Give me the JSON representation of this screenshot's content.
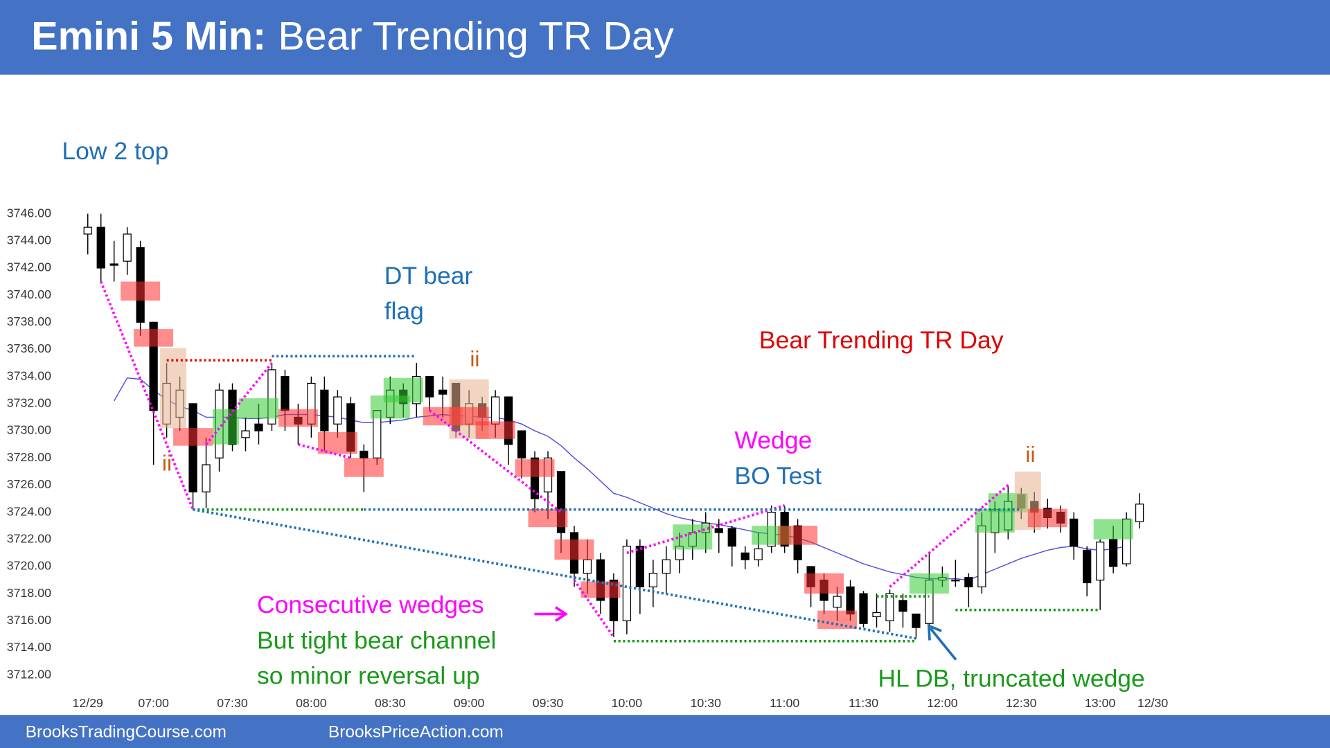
{
  "header": {
    "title_bold": "Emini 5 Min:",
    "title": "Bear Trending TR Day"
  },
  "footer": {
    "left": "BrooksTradingCourse.com",
    "right": "BrooksPriceAction.com"
  },
  "chart_data": {
    "type": "candlestick",
    "categories": [
      "12/29",
      null,
      null,
      null,
      null,
      "07:00",
      null,
      null,
      null,
      null,
      null,
      "07:30",
      null,
      null,
      null,
      null,
      null,
      "08:00",
      null,
      null,
      null,
      null,
      null,
      "08:30",
      null,
      null,
      null,
      null,
      null,
      "09:00",
      null,
      null,
      null,
      null,
      null,
      "09:30",
      null,
      null,
      null,
      null,
      null,
      "10:00",
      null,
      null,
      null,
      null,
      null,
      "10:30",
      null,
      null,
      null,
      null,
      null,
      "11:00",
      null,
      null,
      null,
      null,
      null,
      "11:30",
      null,
      null,
      null,
      null,
      null,
      "12:00",
      null,
      null,
      null,
      null,
      null,
      "12:30",
      null,
      null,
      null,
      null,
      null,
      "13:00",
      null,
      null,
      null,
      "12/30"
    ],
    "open": [
      3744.5,
      3745,
      3742.3,
      3742.5,
      3743.5,
      3738,
      3730.5,
      3731,
      3732,
      3725.5,
      3728,
      3733,
      3729.5,
      3730.5,
      3730.5,
      3734,
      3731,
      3730.5,
      3733,
      3730.5,
      3732,
      3728.5,
      3728,
      3731,
      3733,
      3732,
      3734,
      3733,
      3733.5,
      3730.5,
      3732,
      3730.5,
      3732.5,
      3730,
      3728,
      3725.5,
      3727,
      3722.5,
      3719.5,
      3720.5,
      3719,
      3716,
      3721.5,
      3718.5,
      3719.5,
      3720.5,
      3721.5,
      3722.5,
      3722.8,
      3722.8,
      3721,
      3720.5,
      3721.5,
      3724,
      3723,
      3720,
      3719,
      3717,
      3718.5,
      3718,
      3716.3,
      3716,
      3717.5,
      3716.5,
      3715.8,
      3719,
      3719,
      3719.2,
      3718.5,
      3722.5,
      3722.7,
      3725.3,
      3724.8,
      3724.3,
      3724,
      3723.5,
      3721.2,
      3719,
      3722,
      3720.2,
      3723.3,
      null
    ],
    "high": [
      3746,
      3746,
      3744,
      3745,
      3744,
      3738,
      3735,
      3734,
      3732,
      3729.5,
      3733.5,
      3733.5,
      3731,
      3732,
      3735,
      3734.5,
      3732,
      3734,
      3734,
      3733,
      3732.5,
      3729,
      3731.5,
      3734,
      3733.5,
      3735,
      3734,
      3734,
      3733.5,
      3733,
      3732.5,
      3733,
      3732.5,
      3730,
      3728.5,
      3728.5,
      3727,
      3723,
      3722,
      3721,
      3719.5,
      3722,
      3722,
      3720.5,
      3721.5,
      3722.5,
      3723.5,
      3724,
      3723.5,
      3723,
      3721.5,
      3722.5,
      3724.5,
      3724.5,
      3723.5,
      3720,
      3719.5,
      3718.5,
      3719,
      3718.2,
      3718,
      3718.3,
      3718,
      3716.5,
      3721,
      3720,
      3720.5,
      3719.5,
      3724,
      3724.8,
      3726,
      3725.8,
      3725.5,
      3725,
      3724.5,
      3724,
      3721.5,
      3722,
      3723,
      3724,
      3725.4,
      null
    ],
    "low": [
      3743,
      3741,
      3741,
      3741.5,
      3737,
      3727.5,
      3729.5,
      3730,
      3724.2,
      3724.3,
      3727,
      3728.5,
      3728.5,
      3729,
      3730,
      3730,
      3729,
      3729.5,
      3728.5,
      3729.5,
      3728,
      3725.5,
      3727.5,
      3730.5,
      3731,
      3731,
      3731.5,
      3731,
      3729.5,
      3729.5,
      3730,
      3729.5,
      3727.5,
      3726.5,
      3724,
      3723.5,
      3721,
      3718.5,
      3718,
      3716.5,
      3714.8,
      3715,
      3716.5,
      3717,
      3718,
      3719.5,
      3720.5,
      3721,
      3721,
      3720,
      3719.8,
      3720,
      3721,
      3721,
      3719.5,
      3717,
      3716.5,
      3716,
      3716,
      3715.5,
      3715.5,
      3715.2,
      3715.5,
      3714.7,
      3715.3,
      3718.5,
      3718.5,
      3717,
      3718,
      3721,
      3722,
      3723.5,
      3722.5,
      3722.8,
      3722.5,
      3720.5,
      3717.8,
      3716.8,
      3719.5,
      3720,
      3722.8,
      null
    ],
    "close": [
      3745,
      3742,
      3742.2,
      3744.5,
      3738,
      3731.5,
      3733.5,
      3733,
      3725.5,
      3727.5,
      3733,
      3729,
      3730,
      3730,
      3734.5,
      3731.5,
      3730.5,
      3733.5,
      3730,
      3732.5,
      3728.5,
      3728,
      3731.5,
      3733,
      3732,
      3734,
      3732.5,
      3732.7,
      3730,
      3732,
      3731,
      3732.5,
      3729,
      3728,
      3725,
      3728,
      3722.5,
      3719.5,
      3720.5,
      3717.5,
      3716,
      3721.5,
      3718.5,
      3719.5,
      3720.5,
      3721.5,
      3722.5,
      3723.2,
      3722.5,
      3721.5,
      3720.5,
      3721.3,
      3724,
      3721.5,
      3720.5,
      3718.5,
      3717.5,
      3717.8,
      3716.5,
      3715.8,
      3716.6,
      3718,
      3716.7,
      3715.5,
      3719,
      3719.2,
      3719,
      3718.5,
      3723,
      3724.2,
      3724.8,
      3724.3,
      3724,
      3723.6,
      3723.2,
      3721.5,
      3718.8,
      3721.8,
      3720,
      3723.5,
      3724.6,
      null
    ],
    "up_color": "#ffffff",
    "down_color": "#000000",
    "ema": {
      "color": "#5050e0",
      "values": [
        null,
        null,
        3732.2,
        3733.9,
        3733.8,
        3733,
        3732.3,
        3731.8,
        3731.5,
        3731,
        3731,
        3731,
        3730.9,
        3730.9,
        3731,
        3731.2,
        3731.2,
        3731.2,
        3731.1,
        3731,
        3730.8,
        3730.6,
        3730.6,
        3730.7,
        3730.8,
        3731,
        3731.1,
        3731.2,
        3731.1,
        3731.1,
        3731,
        3731,
        3730.8,
        3730.5,
        3730,
        3729.6,
        3728.9,
        3728,
        3727.2,
        3726.3,
        3725.4,
        3725.1,
        3724.7,
        3724.3,
        3723.9,
        3723.6,
        3723.4,
        3723.2,
        3723.1,
        3722.9,
        3722.7,
        3722.5,
        3722.4,
        3722.3,
        3722.1,
        3721.8,
        3721.4,
        3721,
        3720.6,
        3720.2,
        3719.9,
        3719.6,
        3719.4,
        3719.2,
        3719.1,
        3719.1,
        3719.1,
        3719,
        3719.4,
        3719.8,
        3720.2,
        3720.6,
        3720.9,
        3721.2,
        3721.4,
        3721.5,
        3721.3,
        3721.2,
        3721.3,
        3721.5,
        null,
        null
      ]
    },
    "ylim": [
      3711,
      3747
    ],
    "yticks": [
      {
        "value": 3746,
        "label": "3746.00"
      },
      {
        "value": 3744,
        "label": "3744.00"
      },
      {
        "value": 3742,
        "label": "3742.00"
      },
      {
        "value": 3740,
        "label": "3740.00"
      },
      {
        "value": 3738,
        "label": "3738.00"
      },
      {
        "value": 3736,
        "label": "3736.00"
      },
      {
        "value": 3734,
        "label": "3734.00"
      },
      {
        "value": 3732,
        "label": "3732.00"
      },
      {
        "value": 3730,
        "label": "3730.00"
      },
      {
        "value": 3728,
        "label": "3728.00"
      },
      {
        "value": 3726,
        "label": "3726.00"
      },
      {
        "value": 3724,
        "label": "3724.00"
      },
      {
        "value": 3722,
        "label": "3722.00"
      },
      {
        "value": 3720,
        "label": "3720.00"
      },
      {
        "value": 3718,
        "label": "3718.00"
      },
      {
        "value": 3716,
        "label": "3716.00"
      },
      {
        "value": 3714,
        "label": "3714.00"
      },
      {
        "value": 3712,
        "label": "3712.00"
      }
    ],
    "zones": [
      {
        "from": 3,
        "to": 5,
        "low": 3739.6,
        "high": 3741,
        "color": "#ff3030"
      },
      {
        "from": 4,
        "to": 6,
        "low": 3736.2,
        "high": 3737.5,
        "color": "#ff3030"
      },
      {
        "from": 6,
        "to": 7,
        "low": 3730.2,
        "high": 3736.1,
        "color": "#e8b090"
      },
      {
        "from": 7,
        "to": 9,
        "low": 3728.9,
        "high": 3730.2,
        "color": "#ff3030"
      },
      {
        "from": 10,
        "to": 11,
        "low": 3729,
        "high": 3731.6,
        "color": "#33cc33"
      },
      {
        "from": 12,
        "to": 14,
        "low": 3730.9,
        "high": 3732.4,
        "color": "#33cc33"
      },
      {
        "from": 15,
        "to": 17,
        "low": 3730.3,
        "high": 3731.6,
        "color": "#ff3030"
      },
      {
        "from": 18,
        "to": 20,
        "low": 3728.3,
        "high": 3729.9,
        "color": "#ff3030"
      },
      {
        "from": 20,
        "to": 22,
        "low": 3726.6,
        "high": 3728,
        "color": "#ff3030"
      },
      {
        "from": 22,
        "to": 24,
        "low": 3730.9,
        "high": 3732.6,
        "color": "#33cc33"
      },
      {
        "from": 23,
        "to": 25,
        "low": 3732.1,
        "high": 3733.9,
        "color": "#33cc33"
      },
      {
        "from": 26,
        "to": 28,
        "low": 3730.4,
        "high": 3731.75,
        "color": "#ff3030"
      },
      {
        "from": 28,
        "to": 30,
        "low": 3729.4,
        "high": 3733.8,
        "color": "#e8b090"
      },
      {
        "from": 28,
        "to": 30,
        "low": 3730.4,
        "high": 3731.75,
        "color": "#ff3030"
      },
      {
        "from": 30,
        "to": 32,
        "low": 3729.4,
        "high": 3730.7,
        "color": "#ff3030"
      },
      {
        "from": 33,
        "to": 35,
        "low": 3726.6,
        "high": 3727.9,
        "color": "#ff3030"
      },
      {
        "from": 34,
        "to": 36,
        "low": 3722.9,
        "high": 3724.25,
        "color": "#ff3030"
      },
      {
        "from": 36,
        "to": 38,
        "low": 3720.5,
        "high": 3722,
        "color": "#ff3030"
      },
      {
        "from": 38,
        "to": 40,
        "low": 3717.7,
        "high": 3718.9,
        "color": "#ff3030"
      },
      {
        "from": 45,
        "to": 47,
        "low": 3721.25,
        "high": 3723.1,
        "color": "#33cc33"
      },
      {
        "from": 51,
        "to": 53,
        "low": 3721.6,
        "high": 3723,
        "color": "#33cc33"
      },
      {
        "from": 53,
        "to": 55,
        "low": 3721.6,
        "high": 3723,
        "color": "#ff3030"
      },
      {
        "from": 55,
        "to": 57,
        "low": 3718,
        "high": 3719.5,
        "color": "#ff3030"
      },
      {
        "from": 56,
        "to": 58,
        "low": 3715.4,
        "high": 3716.75,
        "color": "#ff3030"
      },
      {
        "from": 63,
        "to": 65,
        "low": 3718,
        "high": 3719.5,
        "color": "#33cc33"
      },
      {
        "from": 68,
        "to": 70,
        "low": 3722.5,
        "high": 3724.25,
        "color": "#33cc33"
      },
      {
        "from": 69,
        "to": 71,
        "low": 3724,
        "high": 3725.4,
        "color": "#33cc33"
      },
      {
        "from": 71,
        "to": 72,
        "low": 3722.7,
        "high": 3727,
        "color": "#e8b090"
      },
      {
        "from": 72,
        "to": 74,
        "low": 3722.9,
        "high": 3724.25,
        "color": "#ff3030"
      },
      {
        "from": 77,
        "to": 79,
        "low": 3722,
        "high": 3723.5,
        "color": "#33cc33"
      }
    ],
    "trend_lines": [
      {
        "x1": 1,
        "y1": 3741,
        "x2": 8,
        "y2": 3724.2,
        "color": "#ff00ff"
      },
      {
        "x1": 9,
        "y1": 3729,
        "x2": 14,
        "y2": 3735,
        "color": "#ff00ff"
      },
      {
        "x1": 16,
        "y1": 3729,
        "x2": 20,
        "y2": 3728,
        "color": "#ff00ff"
      },
      {
        "x1": 26,
        "y1": 3731.5,
        "x2": 36,
        "y2": 3724,
        "color": "#ff00ff"
      },
      {
        "x1": 37,
        "y1": 3719,
        "x2": 40,
        "y2": 3714.8,
        "color": "#ff00ff"
      },
      {
        "x1": 41,
        "y1": 3721,
        "x2": 53,
        "y2": 3724.5,
        "color": "#ff00ff"
      },
      {
        "x1": 61,
        "y1": 3718.5,
        "x2": 70,
        "y2": 3726,
        "color": "#ff00ff"
      },
      {
        "x1": 6,
        "y1": 3735.2,
        "x2": 14,
        "y2": 3735.2,
        "color": "#dd1111"
      },
      {
        "x1": 14,
        "y1": 3735.5,
        "x2": 25,
        "y2": 3735.5,
        "color": "#1f6fb5"
      },
      {
        "x1": 8,
        "y1": 3724.2,
        "x2": 21,
        "y2": 3724.2,
        "color": "#1a9a1a"
      },
      {
        "x1": 21,
        "y1": 3724.2,
        "x2": 71,
        "y2": 3724.2,
        "color": "#1f6fb5"
      },
      {
        "x1": 8,
        "y1": 3724.2,
        "x2": 63,
        "y2": 3714.7,
        "color": "#1f6fb5"
      },
      {
        "x1": 40,
        "y1": 3714.5,
        "x2": 63,
        "y2": 3714.5,
        "color": "#1a9a1a"
      },
      {
        "x1": 60,
        "y1": 3717.8,
        "x2": 64,
        "y2": 3717.8,
        "color": "#1a9a1a"
      },
      {
        "x1": 66,
        "y1": 3716.8,
        "x2": 77,
        "y2": 3716.8,
        "color": "#1a9a1a"
      }
    ],
    "annotations": [
      {
        "text": "Low 2 top",
        "color": "#1f6fb5"
      },
      {
        "text": "DT bear",
        "color": "#1f6fb5"
      },
      {
        "text": "flag",
        "color": "#1f6fb5"
      },
      {
        "text": "ii",
        "color": "#c55a11"
      },
      {
        "text": "ii",
        "color": "#c55a11"
      },
      {
        "text": "ii",
        "color": "#c55a11"
      },
      {
        "text": "Bear Trending TR Day",
        "color": "#e00000"
      },
      {
        "text": "Wedge",
        "color": "#ff00ff"
      },
      {
        "text": "BO Test",
        "color": "#1f6fb5"
      },
      {
        "text": "Consecutive wedges",
        "color": "#ff00ff"
      },
      {
        "text": "But tight bear channel",
        "color": "#1a9a1a"
      },
      {
        "text": "so minor reversal up",
        "color": "#1a9a1a"
      },
      {
        "text": "HL DB, truncated wedge",
        "color": "#1a9a1a"
      }
    ]
  }
}
